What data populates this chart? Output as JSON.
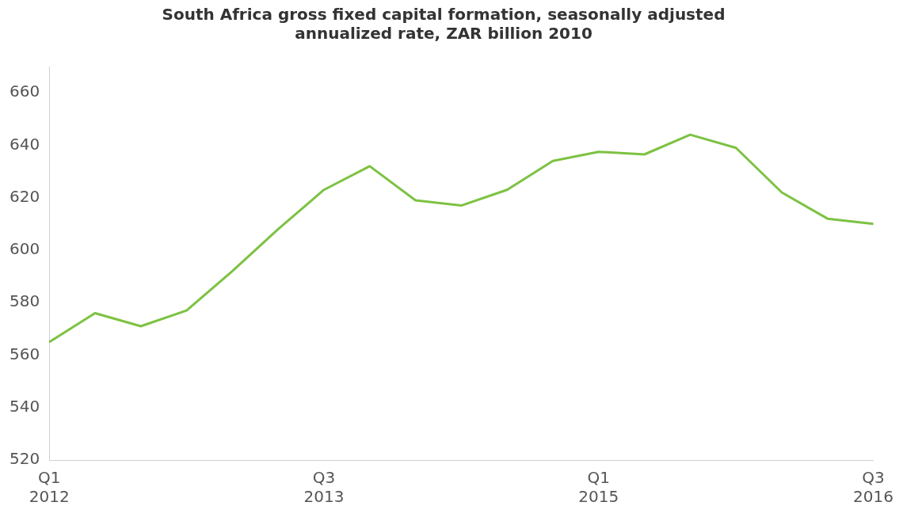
{
  "chart_data": {
    "type": "line",
    "title": "South Africa gross fixed capital formation, seasonally adjusted annualized rate, ZAR billion 2010",
    "categories": [
      "Q1\n2012",
      null,
      null,
      null,
      null,
      null,
      "Q3\n2013",
      null,
      null,
      null,
      null,
      null,
      "Q1\n2015",
      null,
      null,
      null,
      null,
      null,
      "Q3\n2016"
    ],
    "series": [
      {
        "color": "#7dc242",
        "values": [
          565,
          576,
          571,
          577,
          592,
          608,
          623,
          632,
          619,
          617,
          623,
          634,
          637.5,
          636.5,
          644,
          639,
          622,
          612,
          610
        ]
      }
    ],
    "ylim": [
      520,
      670
    ],
    "yticks": [
      520,
      540,
      560,
      580,
      600,
      620,
      640,
      660
    ],
    "grid": false,
    "legend": false,
    "marker": "none",
    "line_style": "solid"
  }
}
